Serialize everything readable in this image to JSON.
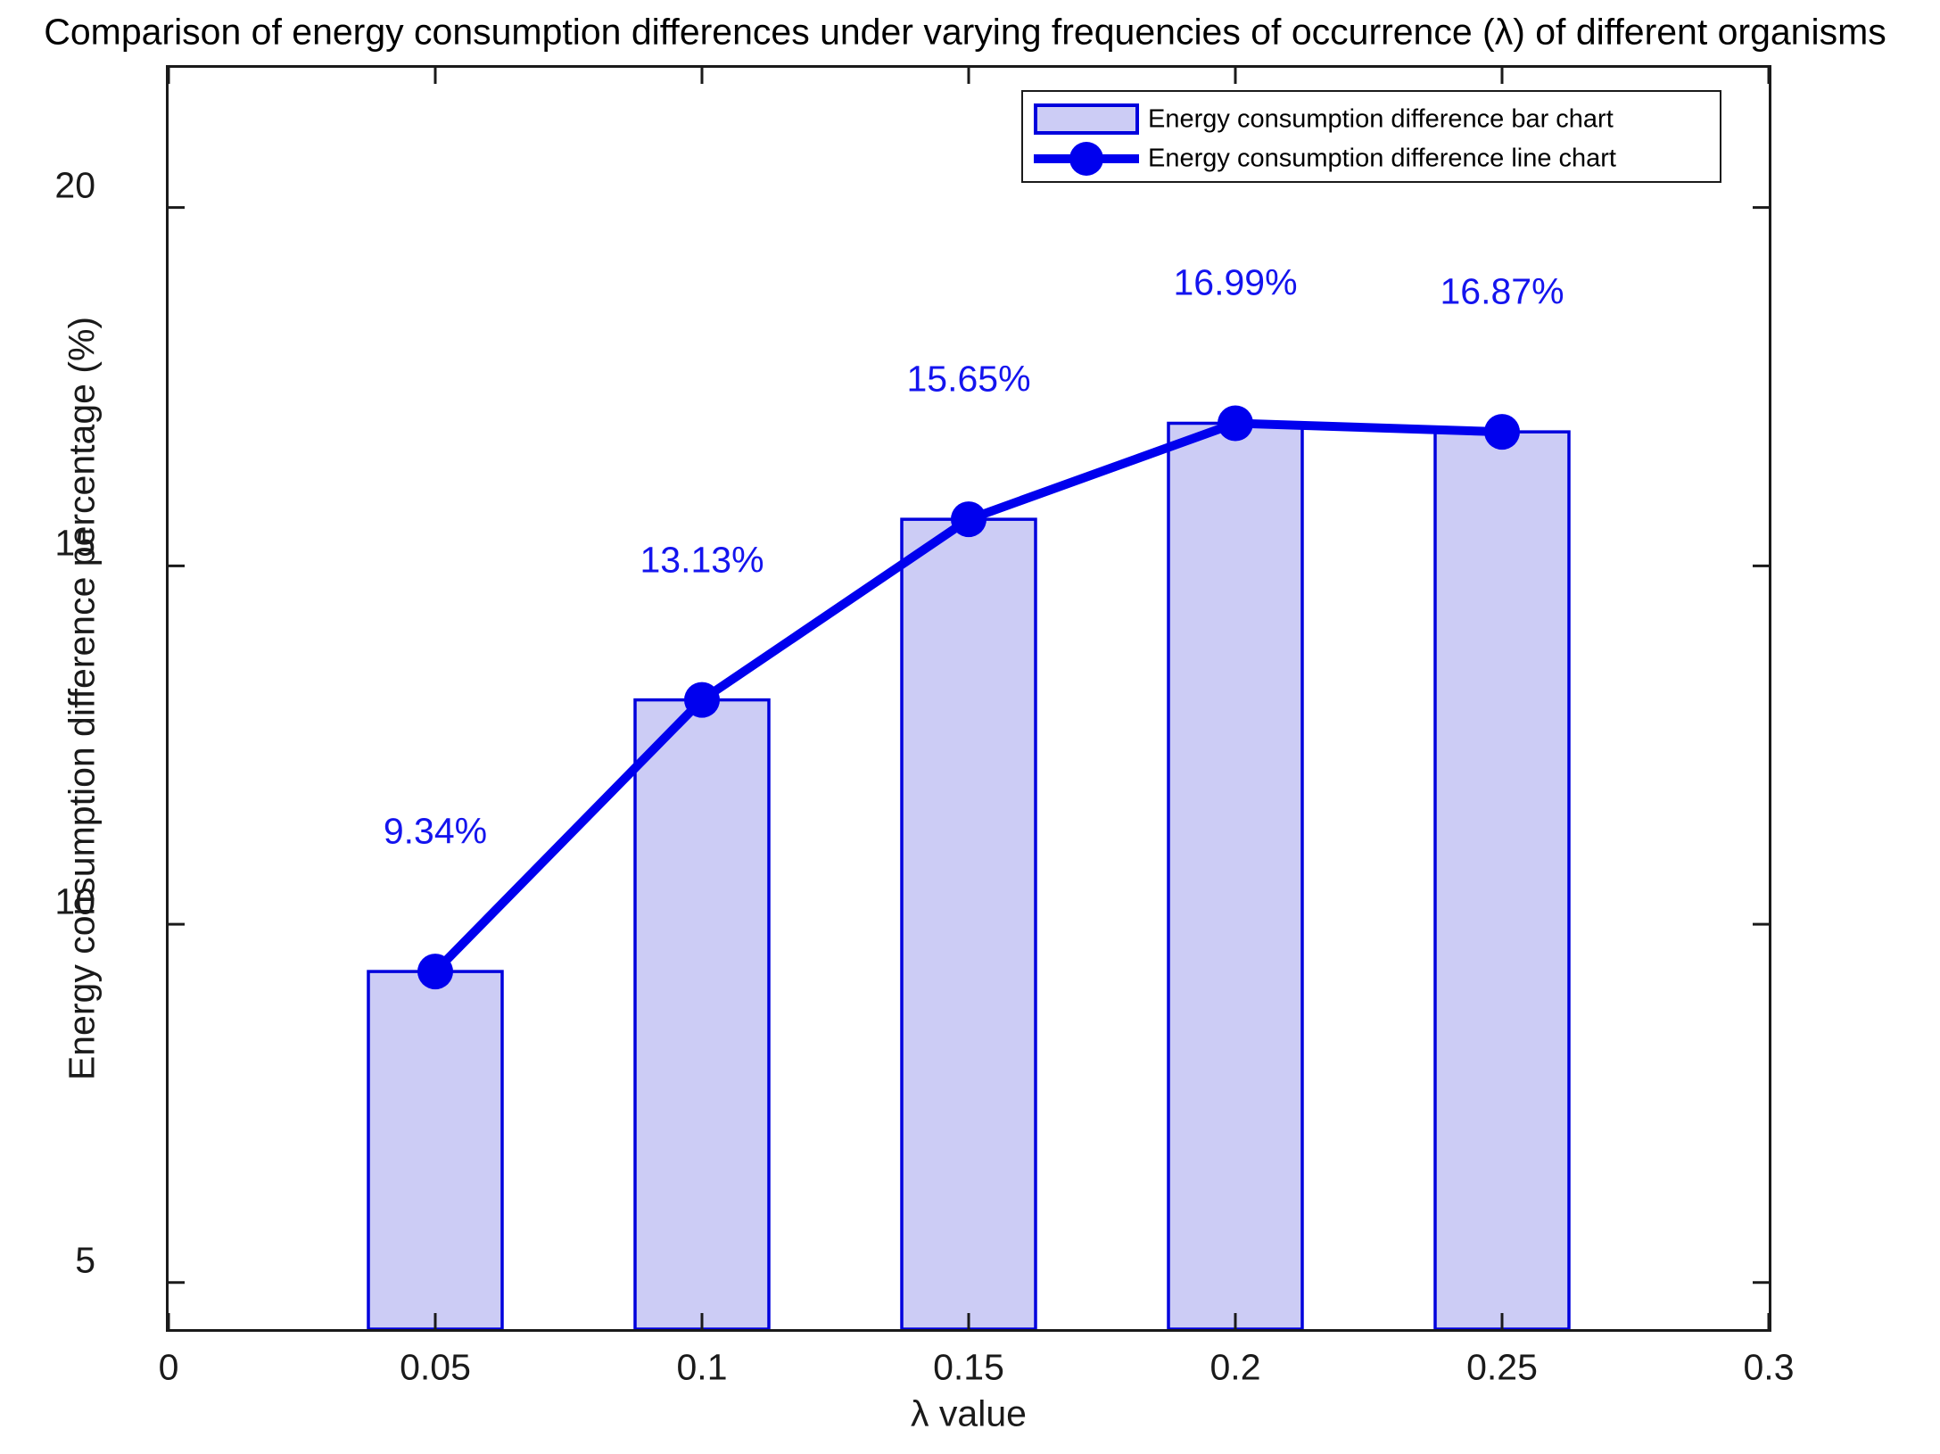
{
  "title": "Comparison of energy consumption differences under varying frequencies of occurrence (λ) of different organisms",
  "axes": {
    "xlabel": "λ value",
    "ylabel": "Energy consumption difference percentage (%)",
    "x_tick_labels": [
      "0",
      "0.05",
      "0.1",
      "0.15",
      "0.2",
      "0.25",
      "0.3"
    ],
    "y_tick_labels": [
      "5",
      "10",
      "15",
      "20"
    ]
  },
  "legend": {
    "bar_item_label": "Energy consumption difference bar chart",
    "line_item_label": "Energy consumption difference line chart"
  },
  "colors": {
    "bar_fill": "#ccccf5",
    "bar_edge": "#0000dd",
    "line": "#0000ee",
    "marker": "#0000ee",
    "data_label_text": "#1414ee",
    "axis": "#1a1a1a"
  },
  "chart_data": {
    "type": "bar",
    "title": "Comparison of energy consumption differences under varying frequencies of occurrence (λ) of different organisms",
    "xlabel": "λ value",
    "ylabel": "Energy consumption difference percentage (%)",
    "x": [
      0.05,
      0.1,
      0.15,
      0.2,
      0.25
    ],
    "series": [
      {
        "name": "Energy consumption difference bar chart",
        "type": "bar",
        "values": [
          9.34,
          13.13,
          15.65,
          16.99,
          16.87
        ]
      },
      {
        "name": "Energy consumption difference line chart",
        "type": "line",
        "values": [
          9.34,
          13.13,
          15.65,
          16.99,
          16.87
        ]
      }
    ],
    "point_labels": [
      "9.34%",
      "13.13%",
      "15.65%",
      "16.99%",
      "16.87%"
    ],
    "x_ticks": [
      0,
      0.05,
      0.1,
      0.15,
      0.2,
      0.25,
      0.3
    ],
    "y_ticks": [
      5,
      10,
      15,
      20
    ],
    "xlim": [
      0,
      0.3
    ],
    "ylim": [
      4.35,
      21.95
    ],
    "grid": false,
    "legend_position": "top-right"
  }
}
